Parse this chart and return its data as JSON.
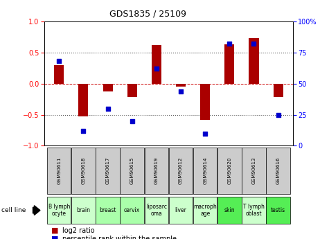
{
  "title": "GDS1835 / 25109",
  "gsm_labels": [
    "GSM90611",
    "GSM90618",
    "GSM90617",
    "GSM90615",
    "GSM90619",
    "GSM90612",
    "GSM90614",
    "GSM90620",
    "GSM90613",
    "GSM90616"
  ],
  "cell_lines": [
    "B lymph\nocyte",
    "brain",
    "breast",
    "cervix",
    "liposarc\noma",
    "liver",
    "macroph\nage",
    "skin",
    "T lymph\noblast",
    "testis"
  ],
  "cell_line_colors": [
    "#ccffcc",
    "#ccffcc",
    "#aaffaa",
    "#aaffaa",
    "#ccffcc",
    "#ccffcc",
    "#ccffcc",
    "#55ee55",
    "#ccffcc",
    "#55ee55"
  ],
  "gsm_color": "#cccccc",
  "log2_ratio": [
    0.3,
    -0.53,
    -0.13,
    -0.22,
    0.62,
    -0.05,
    -0.58,
    0.63,
    0.73,
    -0.22
  ],
  "percentile_rank": [
    68,
    12,
    30,
    20,
    62,
    44,
    10,
    82,
    82,
    25
  ],
  "ylim": [
    -1,
    1
  ],
  "y2lim": [
    0,
    100
  ],
  "yticks_left": [
    -1,
    -0.5,
    0,
    0.5,
    1
  ],
  "yticks_right": [
    0,
    25,
    50,
    75,
    100
  ],
  "bar_color": "#aa0000",
  "dot_color": "#0000cc",
  "hline_color": "#cc0000",
  "dotted_color": "#555555",
  "legend_log2": "log2 ratio",
  "legend_pct": "percentile rank within the sample"
}
